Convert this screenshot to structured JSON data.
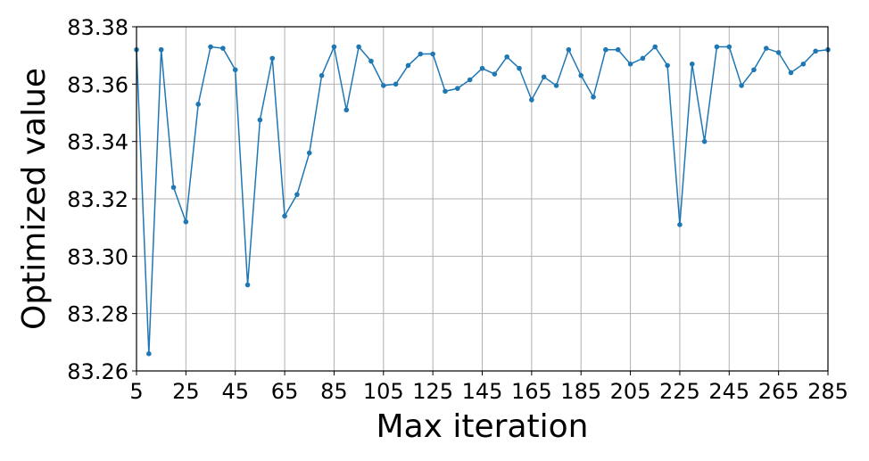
{
  "chart_data": {
    "type": "line",
    "title": "",
    "xlabel": "Max iteration",
    "ylabel": "Optimized value",
    "xlim": [
      5,
      285
    ],
    "ylim": [
      83.26,
      83.38
    ],
    "x_ticks": [
      5,
      25,
      45,
      65,
      85,
      105,
      125,
      145,
      165,
      185,
      205,
      225,
      245,
      265,
      285
    ],
    "y_ticks": [
      "83.26",
      "83.28",
      "83.30",
      "83.32",
      "83.34",
      "83.36",
      "83.38"
    ],
    "grid": true,
    "color": "#1f77b4",
    "series": [
      {
        "x": [
          5,
          10,
          15,
          20,
          25,
          30,
          35,
          40,
          45,
          50,
          55,
          60,
          65,
          70,
          75,
          80,
          85,
          90,
          95,
          100,
          105,
          110,
          115,
          120,
          125,
          130,
          135,
          140,
          145,
          150,
          155,
          160,
          165,
          170,
          175,
          180,
          185,
          190,
          195,
          200,
          205,
          210,
          215,
          220,
          225,
          230,
          235,
          240,
          245,
          250,
          255,
          260,
          265,
          270,
          275,
          280,
          285
        ],
        "y": [
          83.372,
          83.266,
          83.372,
          83.324,
          83.312,
          83.353,
          83.373,
          83.3725,
          83.365,
          83.29,
          83.3475,
          83.369,
          83.314,
          83.3215,
          83.336,
          83.363,
          83.373,
          83.351,
          83.373,
          83.368,
          83.3595,
          83.36,
          83.3665,
          83.3705,
          83.3705,
          83.3575,
          83.3585,
          83.3615,
          83.3655,
          83.3635,
          83.3695,
          83.3655,
          83.3545,
          83.3625,
          83.3595,
          83.372,
          83.363,
          83.3555,
          83.372,
          83.372,
          83.367,
          83.369,
          83.373,
          83.3665,
          83.311,
          83.367,
          83.34,
          83.373,
          83.373,
          83.3595,
          83.365,
          83.3725,
          83.371,
          83.364,
          83.367,
          83.3715,
          83.372
        ]
      }
    ]
  }
}
